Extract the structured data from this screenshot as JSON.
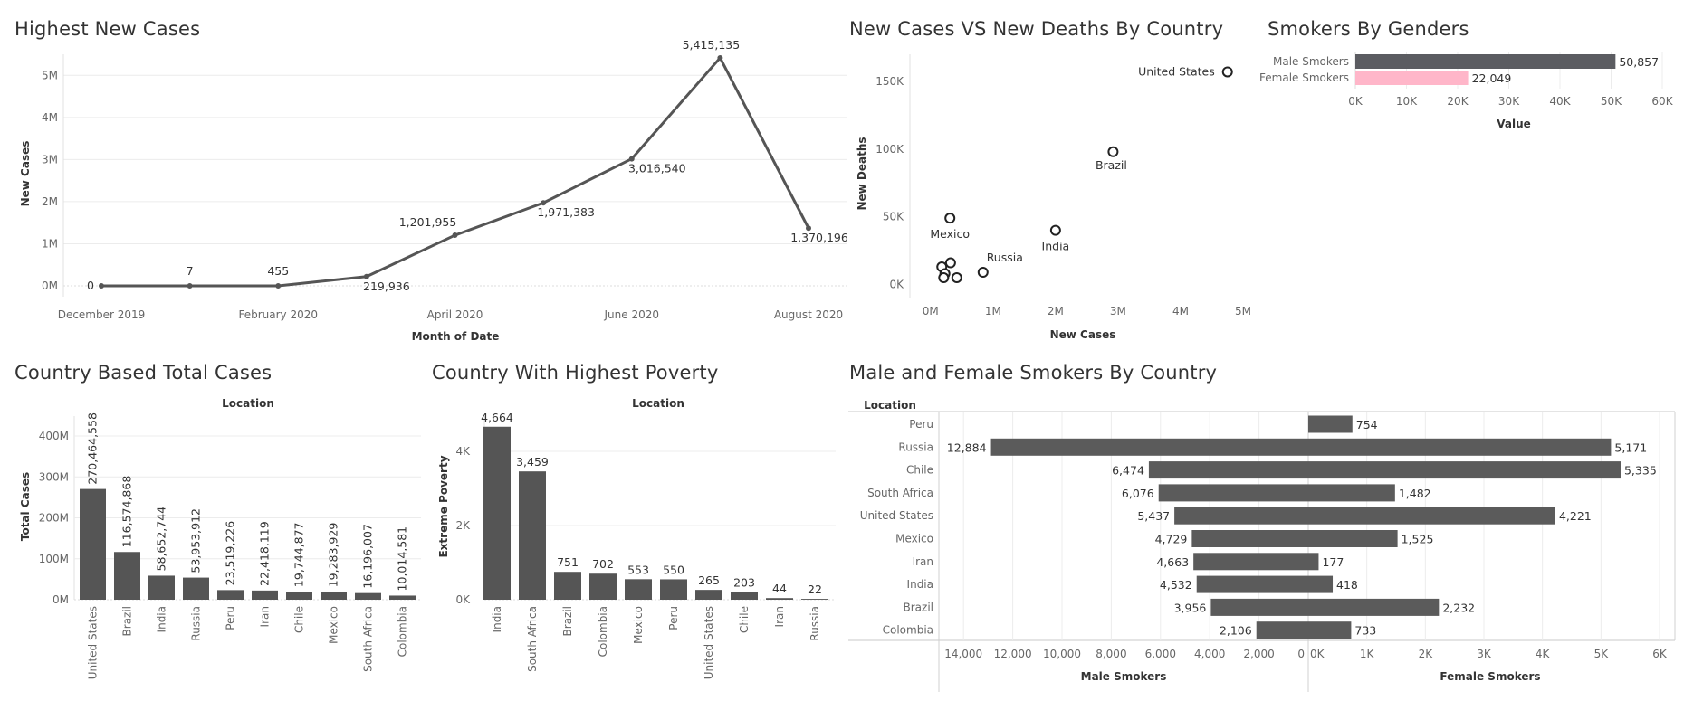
{
  "titles": {
    "line": "Highest New Cases",
    "scatter": "New Cases VS New Deaths By Country",
    "smokers_gender": "Smokers By Genders",
    "total_cases": "Country Based  Total Cases",
    "poverty": "Country With Highest Poverty",
    "smokers_country": "Male and Female Smokers By Country"
  },
  "chart_data": [
    {
      "id": "line",
      "type": "line",
      "title": "Highest New Cases",
      "xlabel": "Month of Date",
      "ylabel": "New Cases",
      "x_tick_labels": [
        "December 2019",
        "February 2020",
        "April 2020",
        "June 2020",
        "August 2020"
      ],
      "y_ticks": [
        0,
        1000000,
        2000000,
        3000000,
        4000000,
        5000000
      ],
      "y_tick_labels": [
        "0M",
        "1M",
        "2M",
        "3M",
        "4M",
        "5M"
      ],
      "ylim": [
        0,
        5500000
      ],
      "x": [
        "2019-12",
        "2020-01",
        "2020-02",
        "2020-03",
        "2020-04",
        "2020-05",
        "2020-06",
        "2020-07",
        "2020-08"
      ],
      "values": [
        0,
        7,
        455,
        219936,
        1201955,
        1971383,
        3016540,
        5415135,
        1370196
      ],
      "data_labels": [
        "0",
        "7",
        "455",
        "219,936",
        "1,201,955",
        "1,971,383",
        "3,016,540",
        "5,415,135",
        "1,370,196"
      ],
      "color": "#555555"
    },
    {
      "id": "scatter",
      "type": "scatter",
      "title": "New Cases VS New Deaths By Country",
      "xlabel": "New Cases",
      "ylabel": "New Deaths",
      "x_ticks": [
        0,
        1000000,
        2000000,
        3000000,
        4000000,
        5000000
      ],
      "x_tick_labels": [
        "0M",
        "1M",
        "2M",
        "3M",
        "4M",
        "5M"
      ],
      "y_ticks": [
        0,
        50000,
        100000,
        150000
      ],
      "y_tick_labels": [
        "0K",
        "50K",
        "100K",
        "150K"
      ],
      "xlim": [
        -200000,
        5000000
      ],
      "ylim": [
        -5000,
        170000
      ],
      "points": [
        {
          "label": "United States",
          "x": 4750000,
          "y": 157000
        },
        {
          "label": "Brazil",
          "x": 2920000,
          "y": 98000
        },
        {
          "label": "Mexico",
          "x": 310000,
          "y": 49000
        },
        {
          "label": "India",
          "x": 2000000,
          "y": 40000
        },
        {
          "label": "Russia",
          "x": 840000,
          "y": 9000
        },
        {
          "label": "",
          "x": 320000,
          "y": 16000
        },
        {
          "label": "",
          "x": 180000,
          "y": 13000
        },
        {
          "label": "",
          "x": 230000,
          "y": 8000
        },
        {
          "label": "",
          "x": 420000,
          "y": 5000
        },
        {
          "label": "",
          "x": 210000,
          "y": 5000
        }
      ]
    },
    {
      "id": "smokers_gender",
      "type": "bar",
      "orientation": "horizontal",
      "title": "Smokers By Genders",
      "xlabel": "Value",
      "categories": [
        "Male Smokers",
        "Female Smokers"
      ],
      "values": [
        50857,
        22049
      ],
      "data_labels": [
        "50,857",
        "22,049"
      ],
      "colors": [
        "#5b5c61",
        "#ffb6c9"
      ],
      "x_ticks": [
        0,
        10000,
        20000,
        30000,
        40000,
        50000,
        60000
      ],
      "x_tick_labels": [
        "0K",
        "10K",
        "20K",
        "30K",
        "40K",
        "50K",
        "60K"
      ],
      "xlim": [
        0,
        60000
      ]
    },
    {
      "id": "total_cases",
      "type": "bar",
      "title": "Country Based  Total Cases",
      "xlabel": "Location",
      "ylabel": "Total Cases",
      "categories": [
        "United States",
        "Brazil",
        "India",
        "Russia",
        "Peru",
        "Iran",
        "Chile",
        "Mexico",
        "South Africa",
        "Colombia"
      ],
      "values": [
        270464558,
        116574868,
        58652744,
        53953912,
        23519226,
        22418119,
        19744877,
        19283929,
        16196007,
        10014581
      ],
      "data_labels": [
        "270,464,558",
        "116,574,868",
        "58,652,744",
        "53,953,912",
        "23,519,226",
        "22,418,119",
        "19,744,877",
        "19,283,929",
        "16,196,007",
        "10,014,581"
      ],
      "y_ticks": [
        0,
        100000000,
        200000000,
        300000000,
        400000000
      ],
      "y_tick_labels": [
        "0M",
        "100M",
        "200M",
        "300M",
        "400M"
      ],
      "ylim": [
        0,
        400000000
      ],
      "color": "#555555"
    },
    {
      "id": "poverty",
      "type": "bar",
      "title": "Country With Highest Poverty",
      "xlabel": "Location",
      "ylabel": "Extreme Poverty",
      "categories": [
        "India",
        "South Africa",
        "Brazil",
        "Colombia",
        "Mexico",
        "Peru",
        "United States",
        "Chile",
        "Iran",
        "Russia"
      ],
      "values": [
        4664,
        3459,
        751,
        702,
        553,
        550,
        265,
        203,
        44,
        22
      ],
      "data_labels": [
        "4,664",
        "3,459",
        "751",
        "702",
        "553",
        "550",
        "265",
        "203",
        "44",
        "22"
      ],
      "y_ticks": [
        0,
        2000,
        4000
      ],
      "y_tick_labels": [
        "0K",
        "2K",
        "4K"
      ],
      "ylim": [
        0,
        5000
      ],
      "color": "#555555"
    },
    {
      "id": "smokers_country",
      "type": "bar",
      "orientation": "horizontal-diverging",
      "title": "Male and Female Smokers By Country",
      "row_header": "Location",
      "categories": [
        "Peru",
        "Russia",
        "Chile",
        "South Africa",
        "United States",
        "Mexico",
        "Iran",
        "India",
        "Brazil",
        "Colombia"
      ],
      "series": [
        {
          "name": "Male Smokers",
          "values": [
            null,
            12884,
            6474,
            6076,
            5437,
            4729,
            4663,
            4532,
            3956,
            2106
          ],
          "data_labels": [
            "",
            "12,884",
            "6,474",
            "6,076",
            "5,437",
            "4,729",
            "4,663",
            "4,532",
            "3,956",
            "2,106"
          ]
        },
        {
          "name": "Female Smokers",
          "values": [
            754,
            5171,
            5335,
            1482,
            4221,
            1525,
            177,
            418,
            2232,
            733
          ],
          "data_labels": [
            "754",
            "5,171",
            "5,335",
            "1,482",
            "4,221",
            "1,525",
            "177",
            "418",
            "2,232",
            "733"
          ]
        }
      ],
      "male_ticks": [
        14000,
        12000,
        10000,
        8000,
        6000,
        4000,
        2000,
        0
      ],
      "male_tick_labels": [
        "14,000",
        "12,000",
        "10,000",
        "8,000",
        "6,000",
        "4,000",
        "2,000",
        "0"
      ],
      "female_ticks": [
        0,
        1000,
        2000,
        3000,
        4000,
        5000,
        6000
      ],
      "female_tick_labels": [
        "0K",
        "1K",
        "2K",
        "3K",
        "4K",
        "5K",
        "6K"
      ],
      "male_xlim": [
        0,
        15000
      ],
      "female_xlim": [
        0,
        6000
      ],
      "color": "#5b5b5b"
    }
  ]
}
